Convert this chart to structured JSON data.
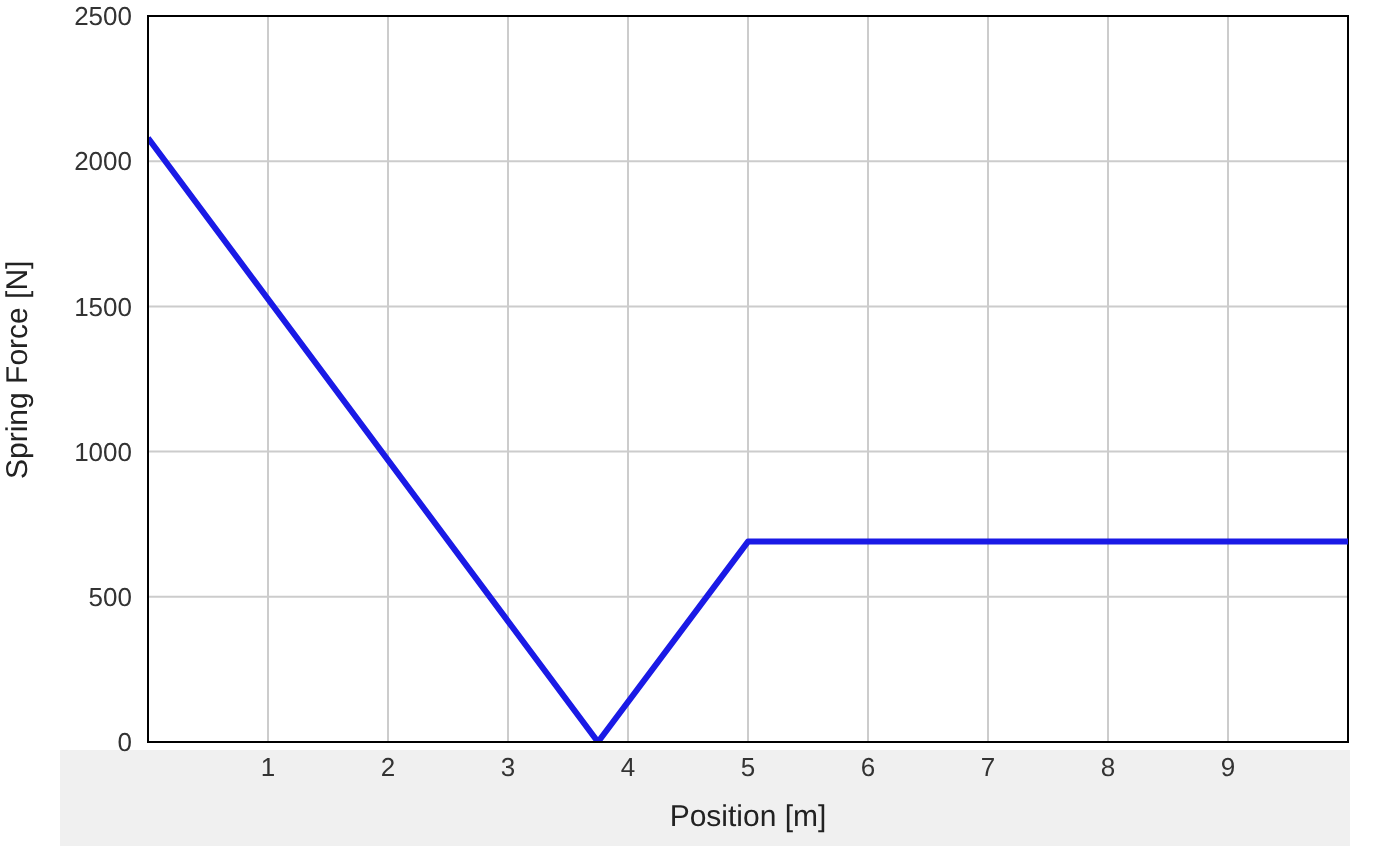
{
  "chart_data": {
    "type": "line",
    "xlabel": "Position [m]",
    "ylabel": "Spring Force [N]",
    "x": [
      0,
      3.75,
      5,
      10
    ],
    "series": [
      {
        "color": "#1a1ae6",
        "values": [
          2080,
          0,
          690,
          690
        ]
      }
    ],
    "xlim": [
      0,
      10
    ],
    "xticks": [
      1,
      2,
      3,
      4,
      5,
      6,
      7,
      8,
      9
    ],
    "ylim": [
      0,
      2500
    ],
    "yticks": [
      0,
      500,
      1000,
      1500,
      2000,
      2500
    ],
    "grid": true,
    "legend": false,
    "marker": "none",
    "line_style": "solid"
  }
}
